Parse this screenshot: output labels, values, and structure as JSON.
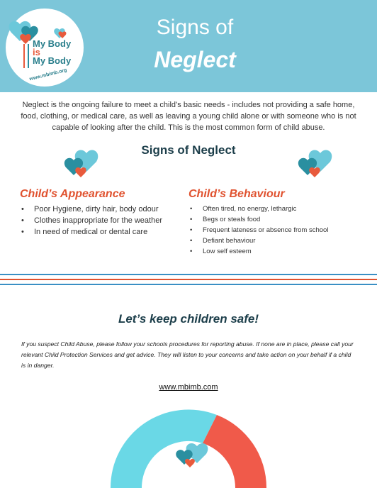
{
  "header": {
    "logo": {
      "line1": "My Body",
      "line2": "is",
      "line3": "My Body",
      "url": "www.mbimb.org"
    },
    "title_line1": "Signs of",
    "title_line2": "Neglect"
  },
  "intro": "Neglect is the ongoing failure to meet a child’s basic needs - includes not providing a safe home, food, clothing, or medical care, as well as leaving a young child alone or with someone who is not capable of looking after the child. This is the most common form of child abuse.",
  "signs": {
    "title": "Signs of Neglect",
    "appearance": {
      "title": "Child’s Appearance",
      "items": [
        "Poor Hygiene, dirty hair, body odour",
        "Clothes inappropriate for the weather",
        "In need of medical or dental care"
      ]
    },
    "behaviour": {
      "title": "Child’s Behaviour",
      "items": [
        "Often tired, no energy, lethargic",
        "Begs or steals food",
        "Frequent lateness or absence from school",
        "Defiant behaviour",
        "Low self esteem"
      ]
    }
  },
  "safety": {
    "title": "Let’s keep children safe!",
    "body": "If you suspect Child Abuse, please follow your schools procedures for reporting abuse. If none are in place, please call your relevant Child Protection Services and get advice. They will listen to your concerns and take action on your behalf if a child is in danger.",
    "link": "www.mbimb.com"
  },
  "colors": {
    "header_bg": "#7cc6d9",
    "accent_orange": "#e0522f",
    "heart_teal": "#2a8fa0",
    "heart_light": "#6cc8da",
    "stripe_blue": "#3a8fc4",
    "donut_cyan": "#6ad8e6",
    "donut_red": "#f05a4a"
  }
}
